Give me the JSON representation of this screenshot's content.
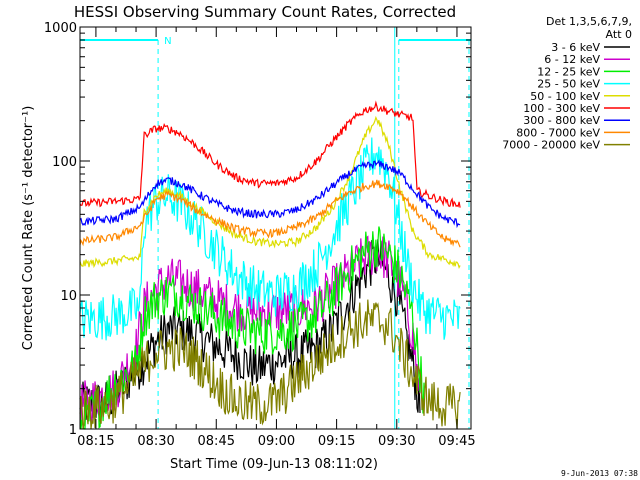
{
  "chart_data": {
    "type": "line",
    "title": "HESSI Observing Summary Count Rates, Corrected",
    "ylabel": "Corrected Count Rate (s⁻¹ detector⁻¹)",
    "xlabel": "Start Time (09-Jun-13 08:11:02)",
    "y_scale": "log",
    "ylim": [
      1,
      1000
    ],
    "xlim": [
      "08:11:02",
      "09:48:30"
    ],
    "x_ticks": [
      "08:15",
      "08:30",
      "08:45",
      "09:00",
      "09:15",
      "09:30",
      "09:45"
    ],
    "y_ticks": [
      "1",
      "10",
      "100",
      "1000"
    ],
    "grid": false,
    "legend": {
      "header_line1": "Det 1,3,5,6,7,9,",
      "header_line2": "Att 0",
      "placement": "outside-right",
      "entries": [
        "3 - 6 keV",
        "6 - 12 keV",
        "12 - 25 keV",
        "25 - 50 keV",
        "50 - 100 keV",
        "100 - 300 keV",
        "300 - 800 keV",
        "800 - 7000 keV",
        "7000 - 20000 keV"
      ]
    },
    "annotations": {
      "flag_label": "N",
      "timestamp": "9-Jun-2013 07:38"
    },
    "flag_segments": [
      {
        "start": "08:11:02",
        "end": "08:30:30"
      },
      {
        "start": "09:30:30",
        "end": "09:48:30"
      }
    ],
    "night_markers": [
      "08:30:30",
      "09:30:30",
      "09:48:00"
    ],
    "saa_lines": [
      "09:29:30"
    ],
    "series": [
      {
        "name": "3 - 6 keV",
        "color": "#000000",
        "points": [
          [
            "08:11",
            1.5
          ],
          [
            "08:18",
            1.6
          ],
          [
            "08:24",
            2.5
          ],
          [
            "08:27",
            3.2
          ],
          [
            "08:30",
            4.5
          ],
          [
            "08:33",
            5.5
          ],
          [
            "08:36",
            5.5
          ],
          [
            "08:40",
            5.0
          ],
          [
            "08:45",
            4.2
          ],
          [
            "08:50",
            3.5
          ],
          [
            "08:55",
            2.8
          ],
          [
            "09:00",
            3.2
          ],
          [
            "09:05",
            3.5
          ],
          [
            "09:10",
            4.0
          ],
          [
            "09:14",
            5.5
          ],
          [
            "09:18",
            9.0
          ],
          [
            "09:22",
            15.0
          ],
          [
            "09:25",
            19.0
          ],
          [
            "09:27",
            16.0
          ],
          [
            "09:30",
            10.0
          ],
          [
            "09:32",
            5.5
          ],
          [
            "09:34",
            3.0
          ],
          [
            "09:36",
            1.3
          ]
        ]
      },
      {
        "name": "6 - 12 keV",
        "color": "#cc00cc",
        "points": [
          [
            "08:11",
            1.5
          ],
          [
            "08:20",
            2.0
          ],
          [
            "08:25",
            4.0
          ],
          [
            "08:27",
            8.0
          ],
          [
            "08:30",
            11.0
          ],
          [
            "08:33",
            13.0
          ],
          [
            "08:36",
            12.5
          ],
          [
            "08:40",
            11.0
          ],
          [
            "08:45",
            9.0
          ],
          [
            "08:50",
            8.0
          ],
          [
            "08:55",
            7.5
          ],
          [
            "09:00",
            7.5
          ],
          [
            "09:05",
            7.8
          ],
          [
            "09:10",
            8.5
          ],
          [
            "09:14",
            11.0
          ],
          [
            "09:18",
            15.0
          ],
          [
            "09:22",
            19.0
          ],
          [
            "09:25",
            21.0
          ],
          [
            "09:28",
            18.0
          ],
          [
            "09:31",
            12.0
          ],
          [
            "09:34",
            5.0
          ],
          [
            "09:36",
            1.5
          ]
        ]
      },
      {
        "name": "12 - 25 keV",
        "color": "#00ee00",
        "points": [
          [
            "08:11",
            1.0
          ],
          [
            "08:20",
            2.2
          ],
          [
            "08:25",
            3.0
          ],
          [
            "08:27",
            7.0
          ],
          [
            "08:30",
            9.5
          ],
          [
            "08:33",
            10.5
          ],
          [
            "08:36",
            10.0
          ],
          [
            "08:40",
            8.5
          ],
          [
            "08:45",
            7.0
          ],
          [
            "08:50",
            5.8
          ],
          [
            "08:55",
            5.3
          ],
          [
            "09:00",
            5.3
          ],
          [
            "09:05",
            5.8
          ],
          [
            "09:10",
            7.0
          ],
          [
            "09:14",
            10.0
          ],
          [
            "09:18",
            15.0
          ],
          [
            "09:22",
            21.0
          ],
          [
            "09:25",
            24.0
          ],
          [
            "09:28",
            20.0
          ],
          [
            "09:31",
            14.0
          ],
          [
            "09:34",
            7.0
          ],
          [
            "09:37",
            1.5
          ]
        ]
      },
      {
        "name": "25 - 50 keV",
        "color": "#00ffff",
        "points": [
          [
            "08:11",
            6.5
          ],
          [
            "08:20",
            7.0
          ],
          [
            "08:26",
            8.0
          ],
          [
            "08:27",
            35.0
          ],
          [
            "08:30",
            50.0
          ],
          [
            "08:33",
            55.0
          ],
          [
            "08:36",
            48.0
          ],
          [
            "08:40",
            35.0
          ],
          [
            "08:45",
            22.0
          ],
          [
            "08:50",
            14.0
          ],
          [
            "08:55",
            11.0
          ],
          [
            "09:00",
            10.0
          ],
          [
            "09:05",
            11.5
          ],
          [
            "09:10",
            16.0
          ],
          [
            "09:14",
            28.0
          ],
          [
            "09:18",
            50.0
          ],
          [
            "09:22",
            85.0
          ],
          [
            "09:25",
            120.0
          ],
          [
            "09:28",
            80.0
          ],
          [
            "09:31",
            30.0
          ],
          [
            "09:33",
            15.0
          ],
          [
            "09:36",
            8.0
          ],
          [
            "09:40",
            7.0
          ],
          [
            "09:46",
            6.5
          ]
        ]
      },
      {
        "name": "50 - 100 keV",
        "color": "#dddd00",
        "points": [
          [
            "08:11",
            17.0
          ],
          [
            "08:20",
            18.0
          ],
          [
            "08:26",
            19.0
          ],
          [
            "08:27",
            42.0
          ],
          [
            "08:30",
            55.0
          ],
          [
            "08:33",
            60.0
          ],
          [
            "08:36",
            55.0
          ],
          [
            "08:40",
            45.0
          ],
          [
            "08:45",
            35.0
          ],
          [
            "08:50",
            28.0
          ],
          [
            "08:55",
            25.0
          ],
          [
            "09:00",
            24.0
          ],
          [
            "09:05",
            25.0
          ],
          [
            "09:10",
            32.0
          ],
          [
            "09:14",
            45.0
          ],
          [
            "09:18",
            75.0
          ],
          [
            "09:22",
            150.0
          ],
          [
            "09:25",
            210.0
          ],
          [
            "09:28",
            130.0
          ],
          [
            "09:31",
            60.0
          ],
          [
            "09:34",
            30.0
          ],
          [
            "09:38",
            20.0
          ],
          [
            "09:46",
            17.0
          ]
        ]
      },
      {
        "name": "100 - 300 keV",
        "color": "#ff0000",
        "points": [
          [
            "08:11",
            48.0
          ],
          [
            "08:20",
            50.0
          ],
          [
            "08:26",
            52.0
          ],
          [
            "08:27",
            155.0
          ],
          [
            "08:30",
            175.0
          ],
          [
            "08:33",
            175.0
          ],
          [
            "08:36",
            160.0
          ],
          [
            "08:40",
            130.0
          ],
          [
            "08:45",
            95.0
          ],
          [
            "08:50",
            75.0
          ],
          [
            "08:55",
            68.0
          ],
          [
            "09:00",
            68.0
          ],
          [
            "09:05",
            75.0
          ],
          [
            "09:10",
            100.0
          ],
          [
            "09:14",
            140.0
          ],
          [
            "09:18",
            190.0
          ],
          [
            "09:22",
            240.0
          ],
          [
            "09:25",
            255.0
          ],
          [
            "09:28",
            235.0
          ],
          [
            "09:31",
            220.0
          ],
          [
            "09:34",
            210.0
          ],
          [
            "09:35",
            60.0
          ],
          [
            "09:38",
            55.0
          ],
          [
            "09:42",
            50.0
          ],
          [
            "09:46",
            47.0
          ]
        ]
      },
      {
        "name": "300 - 800 keV",
        "color": "#0000ff",
        "points": [
          [
            "08:11",
            35.0
          ],
          [
            "08:20",
            37.0
          ],
          [
            "08:26",
            45.0
          ],
          [
            "08:30",
            68.0
          ],
          [
            "08:33",
            72.0
          ],
          [
            "08:36",
            68.0
          ],
          [
            "08:40",
            58.0
          ],
          [
            "08:45",
            48.0
          ],
          [
            "08:50",
            42.0
          ],
          [
            "08:55",
            40.0
          ],
          [
            "09:00",
            40.0
          ],
          [
            "09:05",
            43.0
          ],
          [
            "09:10",
            52.0
          ],
          [
            "09:14",
            65.0
          ],
          [
            "09:18",
            80.0
          ],
          [
            "09:22",
            92.0
          ],
          [
            "09:25",
            95.0
          ],
          [
            "09:28",
            90.0
          ],
          [
            "09:31",
            80.0
          ],
          [
            "09:34",
            62.0
          ],
          [
            "09:38",
            45.0
          ],
          [
            "09:42",
            37.0
          ],
          [
            "09:46",
            34.0
          ]
        ]
      },
      {
        "name": "800 - 7000 keV",
        "color": "#ff8800",
        "points": [
          [
            "08:11",
            25.0
          ],
          [
            "08:20",
            27.0
          ],
          [
            "08:26",
            33.0
          ],
          [
            "08:30",
            52.0
          ],
          [
            "08:33",
            56.0
          ],
          [
            "08:36",
            52.0
          ],
          [
            "08:40",
            43.0
          ],
          [
            "08:45",
            36.0
          ],
          [
            "08:50",
            31.0
          ],
          [
            "08:55",
            29.0
          ],
          [
            "09:00",
            29.0
          ],
          [
            "09:05",
            32.0
          ],
          [
            "09:10",
            38.0
          ],
          [
            "09:14",
            48.0
          ],
          [
            "09:18",
            58.0
          ],
          [
            "09:22",
            65.0
          ],
          [
            "09:25",
            68.0
          ],
          [
            "09:28",
            65.0
          ],
          [
            "09:31",
            58.0
          ],
          [
            "09:34",
            45.0
          ],
          [
            "09:38",
            33.0
          ],
          [
            "09:42",
            26.0
          ],
          [
            "09:46",
            24.0
          ]
        ]
      },
      {
        "name": "7000 - 20000 keV",
        "color": "#808000",
        "points": [
          [
            "08:11",
            1.4
          ],
          [
            "08:18",
            1.5
          ],
          [
            "08:24",
            2.2
          ],
          [
            "08:27",
            3.0
          ],
          [
            "08:30",
            3.8
          ],
          [
            "08:36",
            4.0
          ],
          [
            "08:40",
            3.3
          ],
          [
            "08:45",
            2.2
          ],
          [
            "08:50",
            1.6
          ],
          [
            "08:55",
            1.5
          ],
          [
            "09:00",
            1.6
          ],
          [
            "09:05",
            2.3
          ],
          [
            "09:10",
            3.2
          ],
          [
            "09:14",
            4.2
          ],
          [
            "09:18",
            5.5
          ],
          [
            "09:22",
            6.3
          ],
          [
            "09:25",
            6.5
          ],
          [
            "09:28",
            6.0
          ],
          [
            "09:31",
            4.0
          ],
          [
            "09:34",
            2.5
          ],
          [
            "09:38",
            1.6
          ],
          [
            "09:46",
            1.4
          ]
        ]
      }
    ]
  }
}
